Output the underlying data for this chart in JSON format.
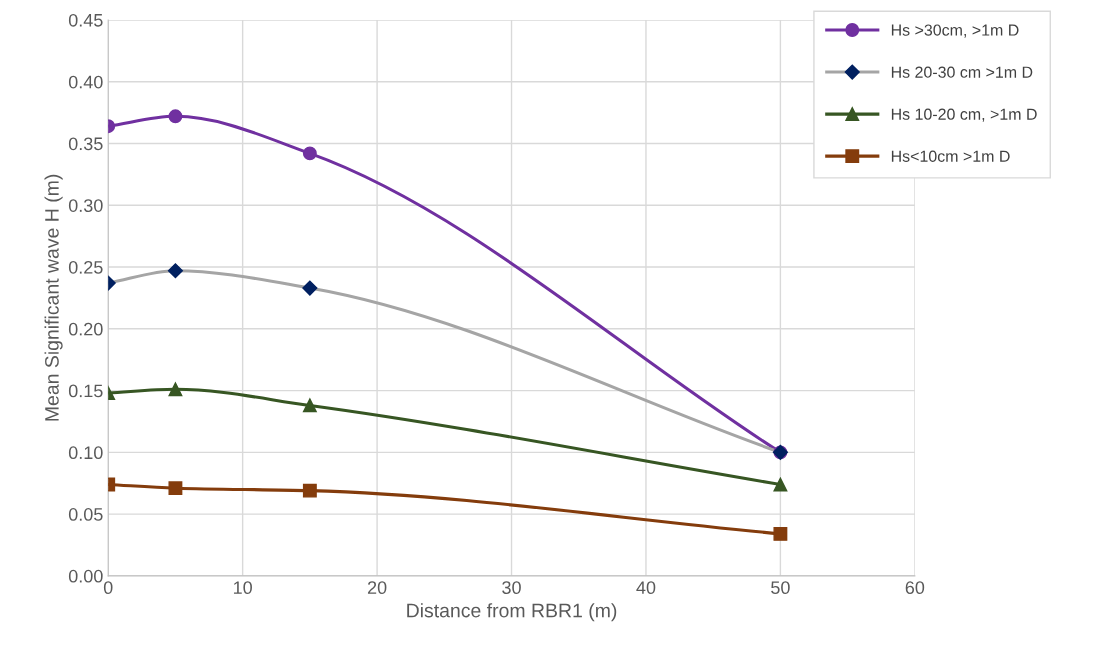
{
  "chart_data": {
    "type": "line",
    "xlabel": "Distance from RBR1 (m)",
    "ylabel": "Mean Significant wave H (m)",
    "x": [
      0,
      5,
      15,
      50
    ],
    "series": [
      {
        "name": "Hs >30cm, >1m D",
        "color": "#7030a0",
        "marker": "circle",
        "values": [
          0.364,
          0.372,
          0.342,
          0.1
        ]
      },
      {
        "name": "Hs 20-30 cm >1m D",
        "color": "#a5a5a5",
        "colors": [
          "#002060",
          "#002060",
          "#002060",
          "#002060"
        ],
        "marker": "diamond",
        "values": [
          0.237,
          0.247,
          0.233,
          0.1
        ]
      },
      {
        "name": "Hs 10-20 cm, >1m D",
        "color": "#375623",
        "marker": "triangle",
        "values": [
          0.148,
          0.151,
          0.138,
          0.074
        ]
      },
      {
        "name": "Hs<10cm >1m D",
        "color": "#843c0c",
        "marker": "square",
        "values": [
          0.074,
          0.071,
          0.069,
          0.034
        ]
      }
    ],
    "xlim": [
      0,
      60
    ],
    "xticks": [
      0,
      10,
      20,
      30,
      40,
      50,
      60
    ],
    "ylim": [
      0,
      0.45
    ],
    "yticks": [
      {
        "value": 0,
        "label": "0.00"
      },
      {
        "value": 0.05,
        "label": "0.05"
      },
      {
        "value": 0.1,
        "label": "0.10"
      },
      {
        "value": 0.15,
        "label": "0.15"
      },
      {
        "value": 0.2,
        "label": "0.20"
      },
      {
        "value": 0.25,
        "label": "0.25"
      },
      {
        "value": 0.3,
        "label": "0.30"
      },
      {
        "value": 0.35,
        "label": "0.35"
      },
      {
        "value": 0.4,
        "label": "0.40"
      },
      {
        "value": 0.45,
        "label": "0.45"
      }
    ],
    "grid": true,
    "legend": "top right",
    "line_style": "solid"
  }
}
